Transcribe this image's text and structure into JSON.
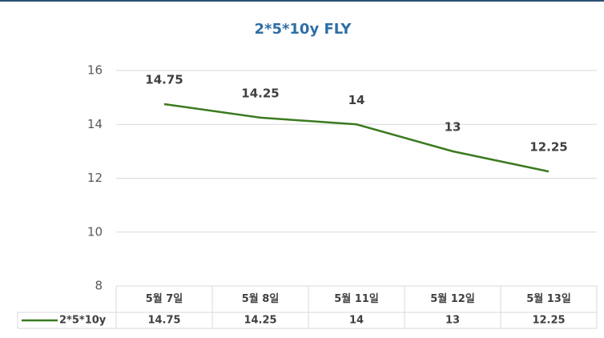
{
  "chart_data": {
    "type": "line",
    "title": "2*5*10y FLY",
    "categories": [
      "5월 7일",
      "5월 8일",
      "5월 11일",
      "5월 12일",
      "5월 13일"
    ],
    "series": [
      {
        "name": "2*5*10y",
        "color": "#3b7a1f",
        "values": [
          14.75,
          14.25,
          14,
          13,
          12.25
        ]
      }
    ],
    "ylim": [
      8,
      16
    ],
    "yticks": [
      8,
      10,
      12,
      14,
      16
    ],
    "grid": true,
    "data_table": true
  }
}
